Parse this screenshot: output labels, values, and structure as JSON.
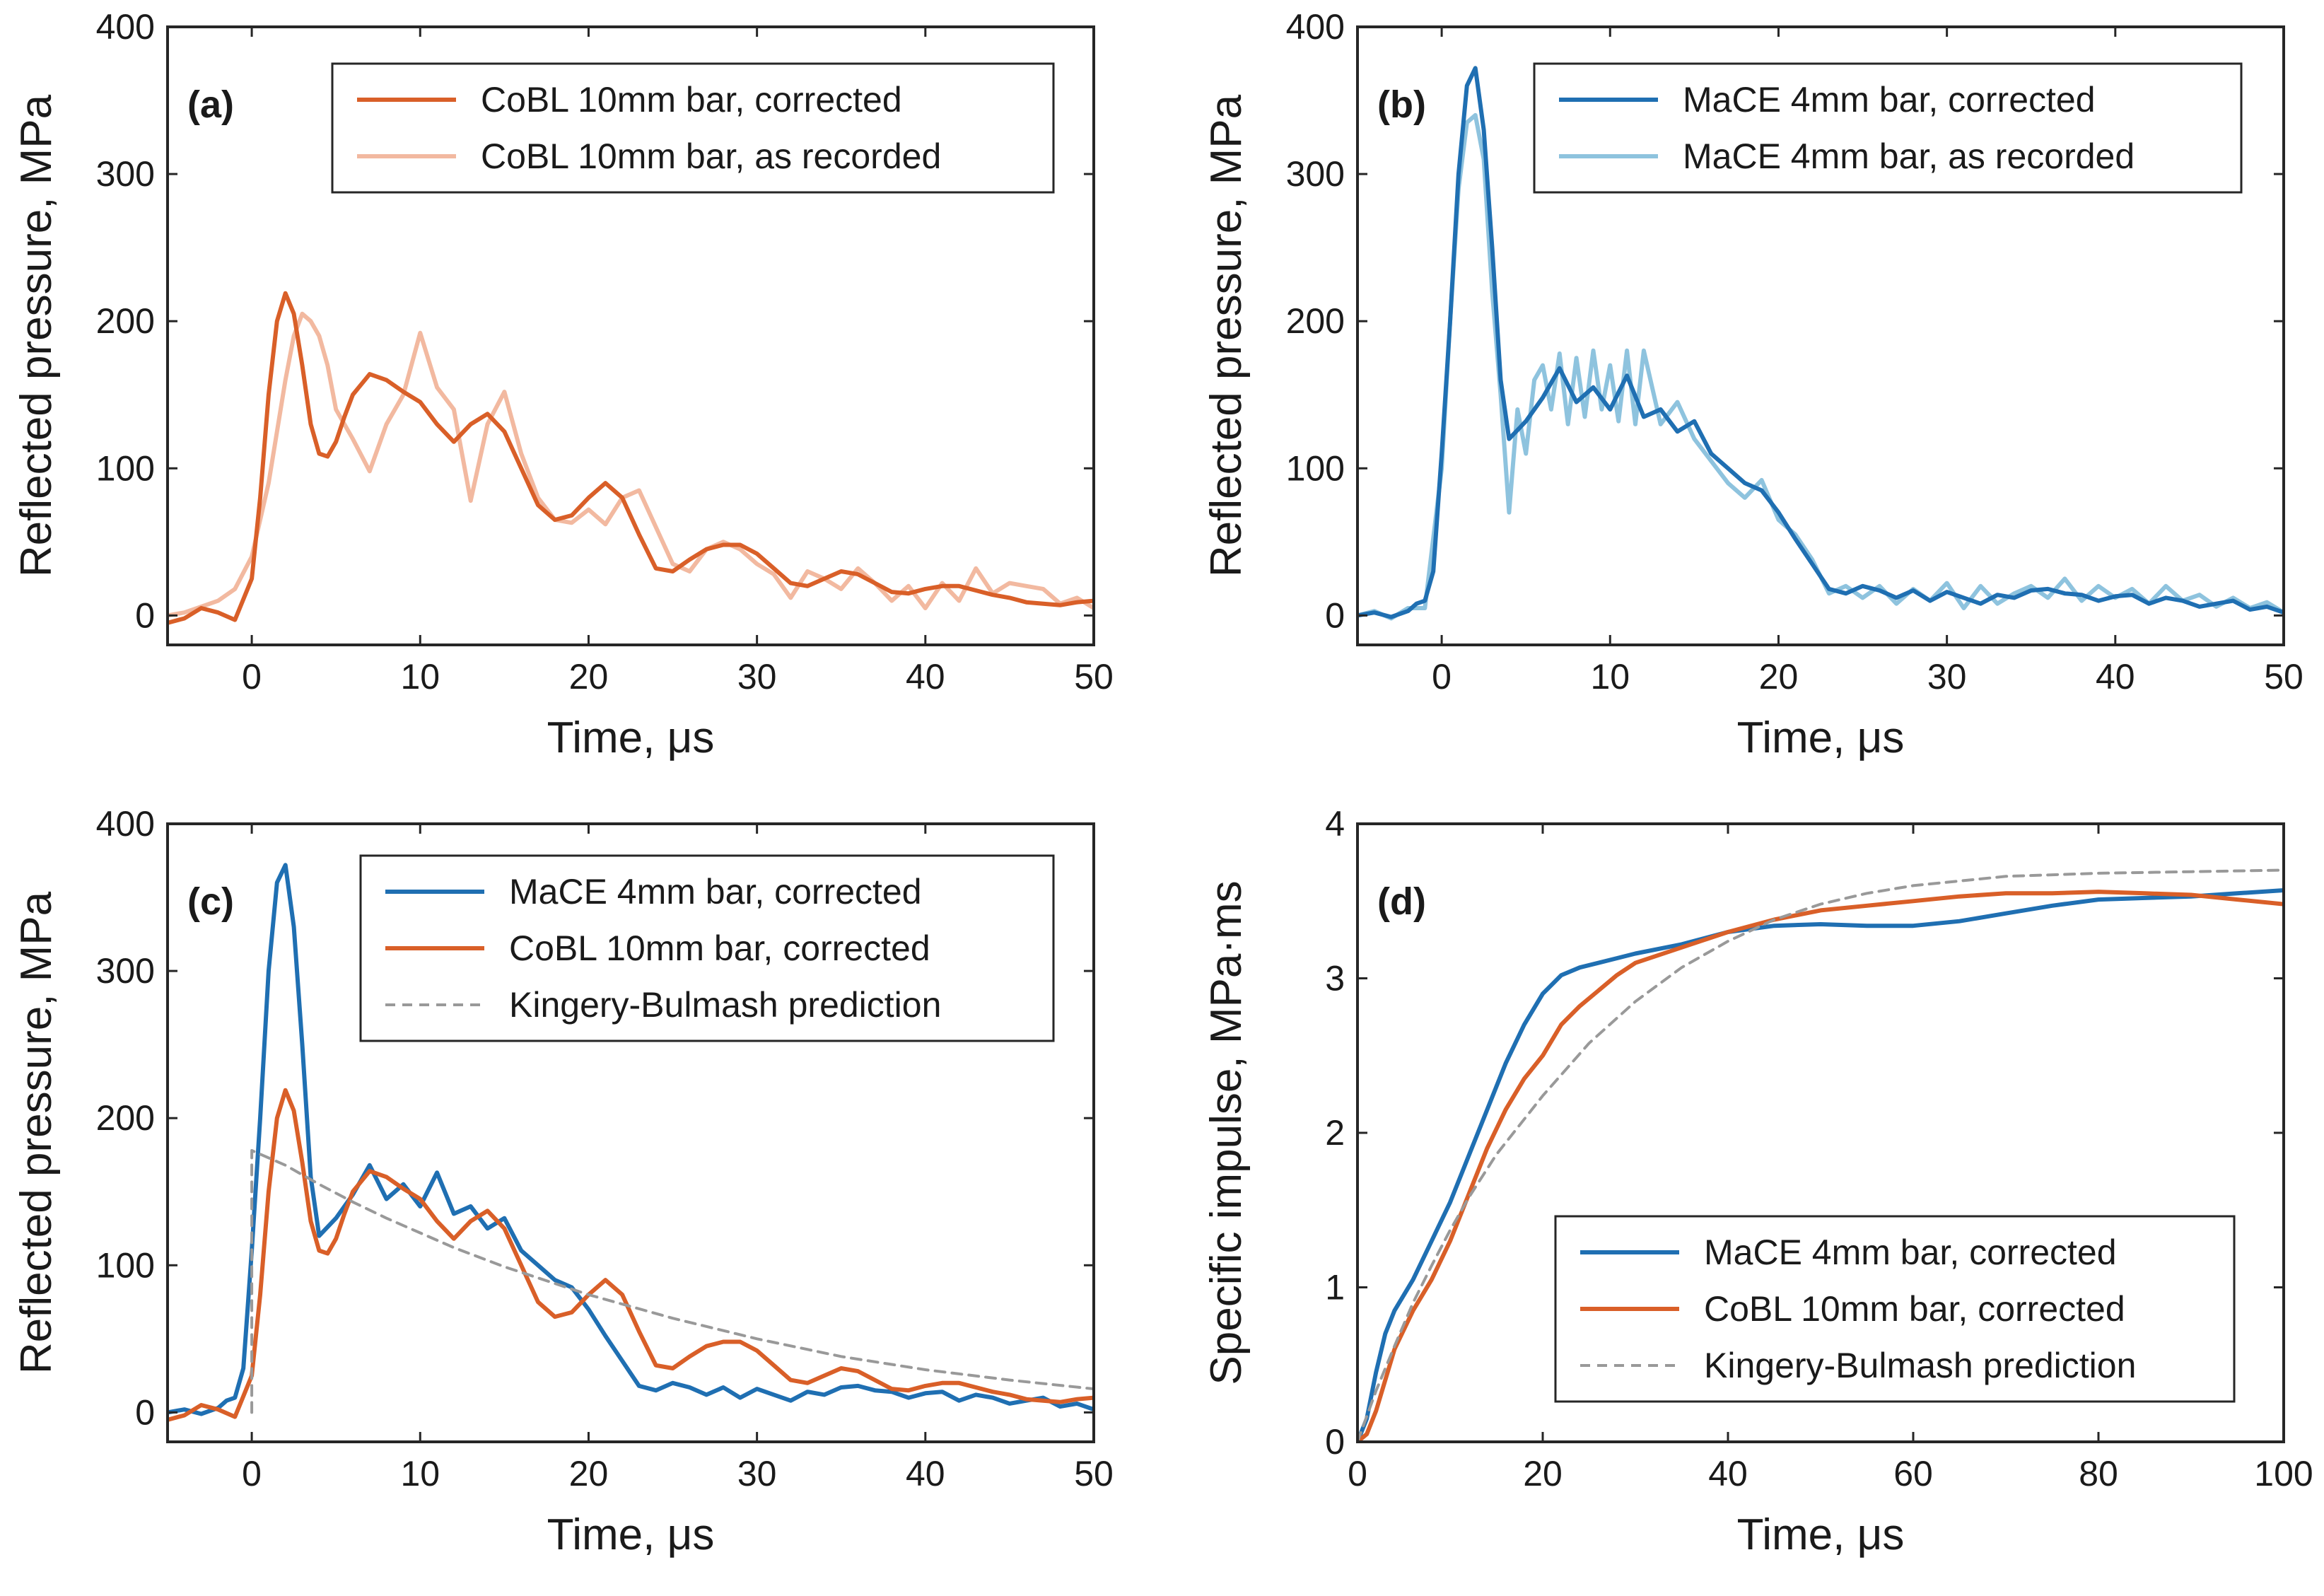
{
  "colors": {
    "orange": "#d95f28",
    "orange_light": "#f2b9a0",
    "blue": "#1f6fb2",
    "blue_light": "#8ec3de",
    "gray_dashed": "#999999"
  },
  "chart_data": [
    {
      "id": "a",
      "panel_label": "(a)",
      "type": "line",
      "xlabel": "Time, μs",
      "ylabel": "Reflected pressure, MPa",
      "xlim": [
        -5,
        50
      ],
      "ylim": [
        -20,
        400
      ],
      "xticks": [
        0,
        10,
        20,
        30,
        40,
        50
      ],
      "yticks": [
        0,
        100,
        200,
        300,
        400
      ],
      "legend_position": "top-right",
      "series": [
        {
          "name": "CoBL 10mm bar, corrected",
          "color_key": "orange",
          "dash": false,
          "x": [
            -5,
            -4,
            -3,
            -2,
            -1,
            0,
            0.5,
            1,
            1.5,
            2,
            2.5,
            3,
            3.5,
            4,
            4.5,
            5,
            5.5,
            6,
            7,
            8,
            9,
            10,
            11,
            12,
            13,
            14,
            15,
            16,
            17,
            18,
            19,
            20,
            21,
            22,
            23,
            24,
            25,
            26,
            27,
            28,
            29,
            30,
            31,
            32,
            33,
            34,
            35,
            36,
            37,
            38,
            39,
            40,
            41,
            42,
            43,
            44,
            45,
            46,
            47,
            48,
            49,
            50
          ],
          "y": [
            -5,
            -2,
            5,
            2,
            -3,
            25,
            80,
            150,
            200,
            219,
            205,
            170,
            130,
            110,
            108,
            118,
            135,
            150,
            164,
            160,
            152,
            145,
            130,
            118,
            130,
            137,
            125,
            100,
            75,
            65,
            68,
            80,
            90,
            80,
            55,
            32,
            30,
            38,
            45,
            48,
            48,
            42,
            32,
            22,
            20,
            25,
            30,
            28,
            22,
            16,
            15,
            18,
            20,
            20,
            17,
            14,
            12,
            9,
            8,
            7,
            9,
            10
          ]
        },
        {
          "name": "CoBL 10mm bar, as recorded",
          "color_key": "orange_light",
          "dash": false,
          "x": [
            -5,
            -4,
            -3,
            -2,
            -1,
            0,
            1,
            2,
            2.5,
            3,
            3.5,
            4,
            4.5,
            5,
            6,
            7,
            8,
            9,
            10,
            11,
            12,
            13,
            14,
            15,
            16,
            17,
            18,
            19,
            20,
            21,
            22,
            23,
            24,
            25,
            26,
            27,
            28,
            29,
            30,
            31,
            32,
            33,
            34,
            35,
            36,
            37,
            38,
            39,
            40,
            41,
            42,
            43,
            44,
            45,
            46,
            47,
            48,
            49,
            50
          ],
          "y": [
            0,
            2,
            6,
            10,
            18,
            40,
            90,
            160,
            190,
            205,
            200,
            190,
            170,
            140,
            120,
            98,
            130,
            150,
            192,
            155,
            140,
            78,
            130,
            152,
            110,
            80,
            65,
            63,
            72,
            62,
            80,
            85,
            60,
            35,
            30,
            45,
            50,
            45,
            35,
            28,
            12,
            30,
            25,
            18,
            32,
            22,
            10,
            20,
            5,
            22,
            10,
            32,
            15,
            22,
            20,
            18,
            8,
            12,
            5
          ]
        }
      ]
    },
    {
      "id": "b",
      "panel_label": "(b)",
      "type": "line",
      "xlabel": "Time, μs",
      "ylabel": "Reflected pressure, MPa",
      "xlim": [
        -5,
        50
      ],
      "ylim": [
        -20,
        400
      ],
      "xticks": [
        0,
        10,
        20,
        30,
        40,
        50
      ],
      "yticks": [
        0,
        100,
        200,
        300,
        400
      ],
      "legend_position": "top-right",
      "series": [
        {
          "name": "MaCE 4mm bar, corrected",
          "color_key": "blue",
          "dash": false,
          "x": [
            -5,
            -4,
            -3,
            -2,
            -1.5,
            -1,
            -0.5,
            0,
            0.5,
            1,
            1.5,
            2,
            2.5,
            3,
            3.5,
            4,
            5,
            6,
            7,
            8,
            9,
            10,
            11,
            12,
            13,
            14,
            15,
            16,
            17,
            18,
            19,
            20,
            21,
            22,
            23,
            24,
            25,
            26,
            27,
            28,
            29,
            30,
            31,
            32,
            33,
            34,
            35,
            36,
            37,
            38,
            39,
            40,
            41,
            42,
            43,
            44,
            45,
            46,
            47,
            48,
            49,
            50
          ],
          "y": [
            0,
            2,
            -1,
            3,
            8,
            10,
            30,
            110,
            200,
            300,
            360,
            372,
            330,
            250,
            160,
            120,
            132,
            148,
            168,
            145,
            155,
            140,
            163,
            135,
            140,
            125,
            132,
            110,
            100,
            90,
            85,
            70,
            52,
            35,
            18,
            15,
            20,
            17,
            12,
            17,
            10,
            16,
            12,
            8,
            14,
            12,
            17,
            18,
            15,
            14,
            10,
            13,
            14,
            8,
            12,
            10,
            6,
            8,
            10,
            4,
            6,
            2
          ]
        },
        {
          "name": "MaCE 4mm bar, as recorded",
          "color_key": "blue_light",
          "dash": false,
          "x": [
            -5,
            -4,
            -3,
            -2,
            -1,
            0,
            0.5,
            1,
            1.5,
            2,
            2.5,
            3,
            3.5,
            4,
            4.5,
            5,
            5.5,
            6,
            6.5,
            7,
            7.5,
            8,
            8.5,
            9,
            9.5,
            10,
            10.5,
            11,
            11.5,
            12,
            13,
            14,
            15,
            16,
            17,
            18,
            19,
            20,
            21,
            22,
            23,
            24,
            25,
            26,
            27,
            28,
            29,
            30,
            31,
            32,
            33,
            34,
            35,
            36,
            37,
            38,
            39,
            40,
            41,
            42,
            43,
            44,
            45,
            46,
            47,
            48,
            49,
            50
          ],
          "y": [
            0,
            3,
            -2,
            5,
            5,
            100,
            200,
            290,
            335,
            340,
            310,
            220,
            150,
            70,
            140,
            110,
            160,
            170,
            140,
            178,
            130,
            175,
            135,
            180,
            140,
            170,
            132,
            180,
            130,
            180,
            130,
            145,
            120,
            105,
            90,
            80,
            92,
            65,
            55,
            38,
            15,
            20,
            12,
            20,
            8,
            18,
            10,
            22,
            5,
            20,
            8,
            15,
            20,
            12,
            25,
            10,
            20,
            12,
            18,
            8,
            20,
            10,
            14,
            6,
            12,
            5,
            9,
            2
          ]
        }
      ]
    },
    {
      "id": "c",
      "panel_label": "(c)",
      "type": "line",
      "xlabel": "Time, μs",
      "ylabel": "Reflected pressure, MPa",
      "xlim": [
        -5,
        50
      ],
      "ylim": [
        -20,
        400
      ],
      "xticks": [
        0,
        10,
        20,
        30,
        40,
        50
      ],
      "yticks": [
        0,
        100,
        200,
        300,
        400
      ],
      "legend_position": "top-right",
      "series": [
        {
          "name": "MaCE 4mm bar, corrected",
          "color_key": "blue",
          "dash": false,
          "x": [
            -5,
            -4,
            -3,
            -2,
            -1.5,
            -1,
            -0.5,
            0,
            0.5,
            1,
            1.5,
            2,
            2.5,
            3,
            3.5,
            4,
            5,
            6,
            7,
            8,
            9,
            10,
            11,
            12,
            13,
            14,
            15,
            16,
            17,
            18,
            19,
            20,
            21,
            22,
            23,
            24,
            25,
            26,
            27,
            28,
            29,
            30,
            31,
            32,
            33,
            34,
            35,
            36,
            37,
            38,
            39,
            40,
            41,
            42,
            43,
            44,
            45,
            46,
            47,
            48,
            49,
            50
          ],
          "y": [
            0,
            2,
            -1,
            3,
            8,
            10,
            30,
            110,
            200,
            300,
            360,
            372,
            330,
            250,
            160,
            120,
            132,
            148,
            168,
            145,
            155,
            140,
            163,
            135,
            140,
            125,
            132,
            110,
            100,
            90,
            85,
            70,
            52,
            35,
            18,
            15,
            20,
            17,
            12,
            17,
            10,
            16,
            12,
            8,
            14,
            12,
            17,
            18,
            15,
            14,
            10,
            13,
            14,
            8,
            12,
            10,
            6,
            8,
            10,
            4,
            6,
            2
          ]
        },
        {
          "name": "CoBL 10mm bar, corrected",
          "color_key": "orange",
          "dash": false,
          "x": [
            -5,
            -4,
            -3,
            -2,
            -1,
            0,
            0.5,
            1,
            1.5,
            2,
            2.5,
            3,
            3.5,
            4,
            4.5,
            5,
            5.5,
            6,
            7,
            8,
            9,
            10,
            11,
            12,
            13,
            14,
            15,
            16,
            17,
            18,
            19,
            20,
            21,
            22,
            23,
            24,
            25,
            26,
            27,
            28,
            29,
            30,
            31,
            32,
            33,
            34,
            35,
            36,
            37,
            38,
            39,
            40,
            41,
            42,
            43,
            44,
            45,
            46,
            47,
            48,
            49,
            50
          ],
          "y": [
            -5,
            -2,
            5,
            2,
            -3,
            25,
            80,
            150,
            200,
            219,
            205,
            170,
            130,
            110,
            108,
            118,
            135,
            150,
            164,
            160,
            152,
            145,
            130,
            118,
            130,
            137,
            125,
            100,
            75,
            65,
            68,
            80,
            90,
            80,
            55,
            32,
            30,
            38,
            45,
            48,
            48,
            42,
            32,
            22,
            20,
            25,
            30,
            28,
            22,
            16,
            15,
            18,
            20,
            20,
            17,
            14,
            12,
            9,
            8,
            7,
            9,
            10
          ]
        },
        {
          "name": "Kingery-Bulmash prediction",
          "color_key": "gray_dashed",
          "dash": true,
          "x": [
            0,
            0,
            2,
            4,
            6,
            8,
            10,
            12,
            15,
            20,
            25,
            30,
            35,
            40,
            45,
            50
          ],
          "y": [
            0,
            178,
            168,
            155,
            143,
            132,
            122,
            112,
            99,
            80,
            64,
            50,
            38,
            29,
            22,
            16
          ]
        }
      ]
    },
    {
      "id": "d",
      "panel_label": "(d)",
      "type": "line",
      "xlabel": "Time, μs",
      "ylabel": "Specific impulse, MPa·ms",
      "xlim": [
        0,
        100
      ],
      "ylim": [
        0,
        4
      ],
      "xticks": [
        0,
        20,
        40,
        60,
        80,
        100
      ],
      "yticks": [
        0,
        1,
        2,
        3,
        4
      ],
      "legend_position": "bottom-right",
      "series": [
        {
          "name": "MaCE 4mm bar, corrected",
          "color_key": "blue",
          "dash": false,
          "x": [
            0,
            1,
            2,
            3,
            4,
            6,
            8,
            10,
            12,
            14,
            16,
            18,
            20,
            22,
            24,
            26,
            28,
            30,
            35,
            40,
            45,
            50,
            55,
            60,
            65,
            70,
            75,
            80,
            85,
            90,
            95,
            100
          ],
          "y": [
            0,
            0.15,
            0.45,
            0.7,
            0.85,
            1.05,
            1.3,
            1.55,
            1.85,
            2.15,
            2.45,
            2.7,
            2.9,
            3.02,
            3.07,
            3.1,
            3.13,
            3.16,
            3.22,
            3.3,
            3.34,
            3.35,
            3.34,
            3.34,
            3.37,
            3.42,
            3.47,
            3.51,
            3.52,
            3.53,
            3.55,
            3.57
          ]
        },
        {
          "name": "CoBL 10mm bar, corrected",
          "color_key": "orange",
          "dash": false,
          "x": [
            0,
            1,
            2,
            3,
            4,
            6,
            8,
            10,
            12,
            14,
            16,
            18,
            20,
            22,
            24,
            26,
            28,
            30,
            35,
            40,
            45,
            50,
            55,
            60,
            65,
            70,
            75,
            80,
            85,
            90,
            95,
            100
          ],
          "y": [
            0,
            0.05,
            0.2,
            0.4,
            0.6,
            0.85,
            1.05,
            1.3,
            1.6,
            1.9,
            2.15,
            2.35,
            2.5,
            2.7,
            2.82,
            2.92,
            3.02,
            3.1,
            3.2,
            3.3,
            3.38,
            3.44,
            3.47,
            3.5,
            3.53,
            3.55,
            3.55,
            3.56,
            3.55,
            3.54,
            3.51,
            3.48
          ]
        },
        {
          "name": "Kingery-Bulmash prediction",
          "color_key": "gray_dashed",
          "dash": true,
          "x": [
            0,
            2,
            4,
            6,
            8,
            10,
            12,
            15,
            20,
            25,
            30,
            35,
            40,
            45,
            50,
            55,
            60,
            70,
            80,
            90,
            100
          ],
          "y": [
            0,
            0.33,
            0.62,
            0.9,
            1.14,
            1.37,
            1.58,
            1.86,
            2.24,
            2.58,
            2.85,
            3.07,
            3.24,
            3.38,
            3.48,
            3.55,
            3.6,
            3.66,
            3.68,
            3.69,
            3.7
          ]
        }
      ]
    }
  ]
}
